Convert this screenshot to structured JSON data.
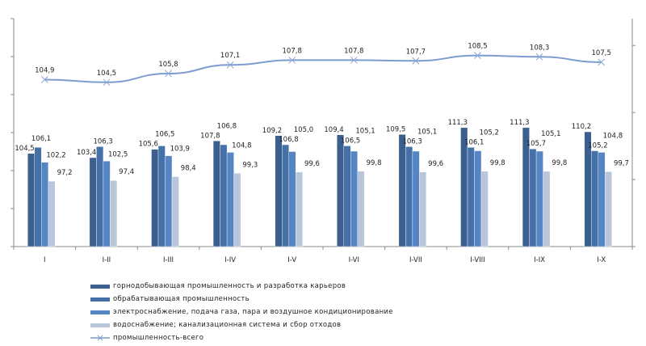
{
  "chart_data": {
    "type": "bar",
    "categories": [
      "I",
      "I-II",
      "I-III",
      "I-IV",
      "I-V",
      "I-VI",
      "I-VII",
      "I-VIII",
      "I-IX",
      "I-X"
    ],
    "series": [
      {
        "name": "горнодобывающая промышленность  и разработка карьеров",
        "type": "bar",
        "axis": "left",
        "color": "#3b5f8e",
        "values": [
          104.5,
          103.4,
          105.6,
          107.8,
          109.2,
          109.4,
          109.5,
          111.3,
          111.3,
          110.2
        ]
      },
      {
        "name": "обрабатывающая промышленность",
        "type": "bar",
        "axis": "left",
        "color": "#4671a8",
        "values": [
          106.1,
          106.3,
          106.5,
          106.8,
          106.8,
          106.5,
          106.3,
          106.1,
          105.7,
          105.2
        ]
      },
      {
        "name": "электроснабжение, подача газа, пара и воздушное кондиционирование",
        "type": "bar",
        "axis": "left",
        "color": "#5585c2",
        "values": [
          102.2,
          102.5,
          103.9,
          104.8,
          105.0,
          105.1,
          105.1,
          105.2,
          105.1,
          104.8
        ]
      },
      {
        "name": "водоснабжение; канализационная система и сбор отходов",
        "type": "bar",
        "axis": "left",
        "color": "#b9c6da",
        "values": [
          97.2,
          97.4,
          98.4,
          99.3,
          99.6,
          99.8,
          99.6,
          99.8,
          99.8,
          99.7
        ]
      },
      {
        "name": "промышленность-всего",
        "type": "line",
        "axis": "right",
        "color": "#7d9ccf",
        "marker": "x",
        "values": [
          104.9,
          104.5,
          105.8,
          107.1,
          107.8,
          107.8,
          107.7,
          108.5,
          108.3,
          107.5
        ]
      }
    ],
    "ylim_left": [
      80,
      140
    ],
    "ylim_right": [
      80,
      114
    ],
    "tick_labels_shown": false,
    "grid": false,
    "legend": "bottom"
  }
}
